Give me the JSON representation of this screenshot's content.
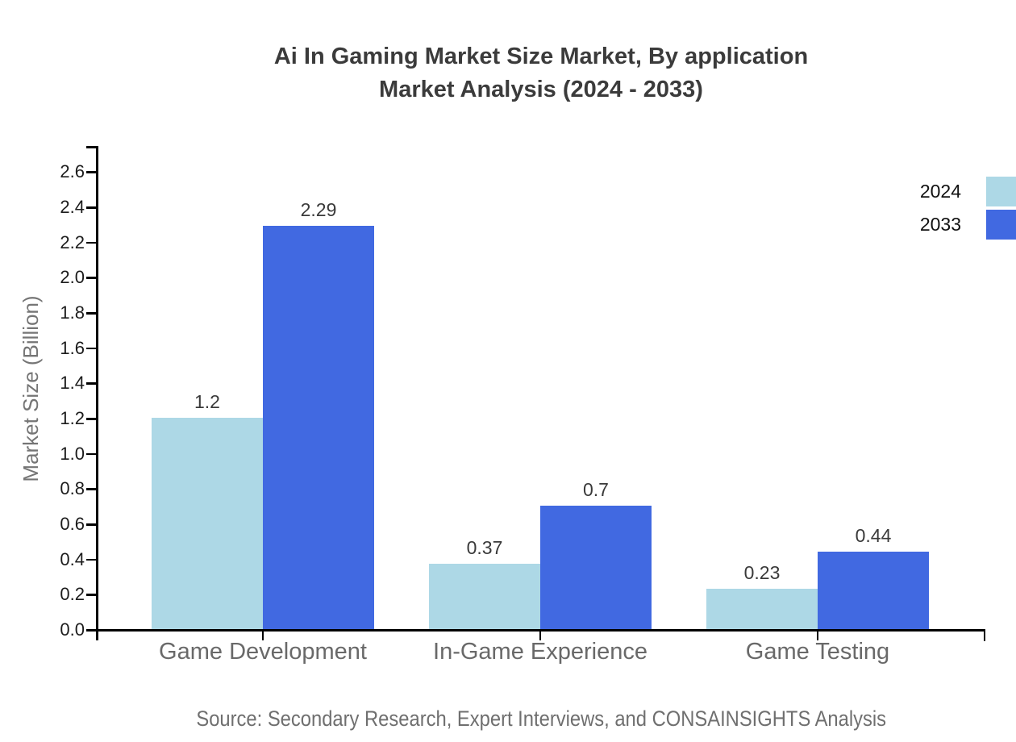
{
  "title": {
    "line1": "Ai In Gaming Market Size Market, By application",
    "line2": "Market Analysis (2024 - 2033)"
  },
  "y_axis": {
    "label": "Market Size (Billion)",
    "ticks": [
      "0.0",
      "0.2",
      "0.4",
      "0.6",
      "0.8",
      "1.0",
      "1.2",
      "1.4",
      "1.6",
      "1.8",
      "2.0",
      "2.2",
      "2.4",
      "2.6"
    ]
  },
  "x_axis": {
    "categories": [
      "Game Development",
      "In-Game Experience",
      "Game Testing"
    ]
  },
  "legend": {
    "items": [
      {
        "label": "2024",
        "color": "#ADD8E6"
      },
      {
        "label": "2033",
        "color": "#4169E1"
      }
    ]
  },
  "source": "Source: Secondary Research, Expert Interviews, and CONSAINSIGHTS Analysis",
  "chart_data": {
    "type": "bar",
    "title": "Ai In Gaming Market Size Market, By application Market Analysis (2024 - 2033)",
    "categories": [
      "Game Development",
      "In-Game Experience",
      "Game Testing"
    ],
    "series": [
      {
        "name": "2024",
        "color": "#ADD8E6",
        "values": [
          1.2,
          0.37,
          0.23
        ]
      },
      {
        "name": "2033",
        "color": "#4169E1",
        "values": [
          2.29,
          0.7,
          0.44
        ]
      }
    ],
    "value_labels": {
      "2024": [
        "1.2",
        "0.37",
        "0.23"
      ],
      "2033": [
        "2.29",
        "0.7",
        "0.44"
      ]
    },
    "xlabel": "",
    "ylabel": "Market Size (Billion)",
    "ylim": [
      0,
      2.74
    ],
    "ytick_step": 0.2,
    "yticks": [
      "0.0",
      "0.2",
      "0.4",
      "0.6",
      "0.8",
      "1.0",
      "1.2",
      "1.4",
      "1.6",
      "1.8",
      "2.0",
      "2.2",
      "2.4",
      "2.6"
    ],
    "grid": false,
    "legend_position": "top-right",
    "bar_value_labels": true
  }
}
